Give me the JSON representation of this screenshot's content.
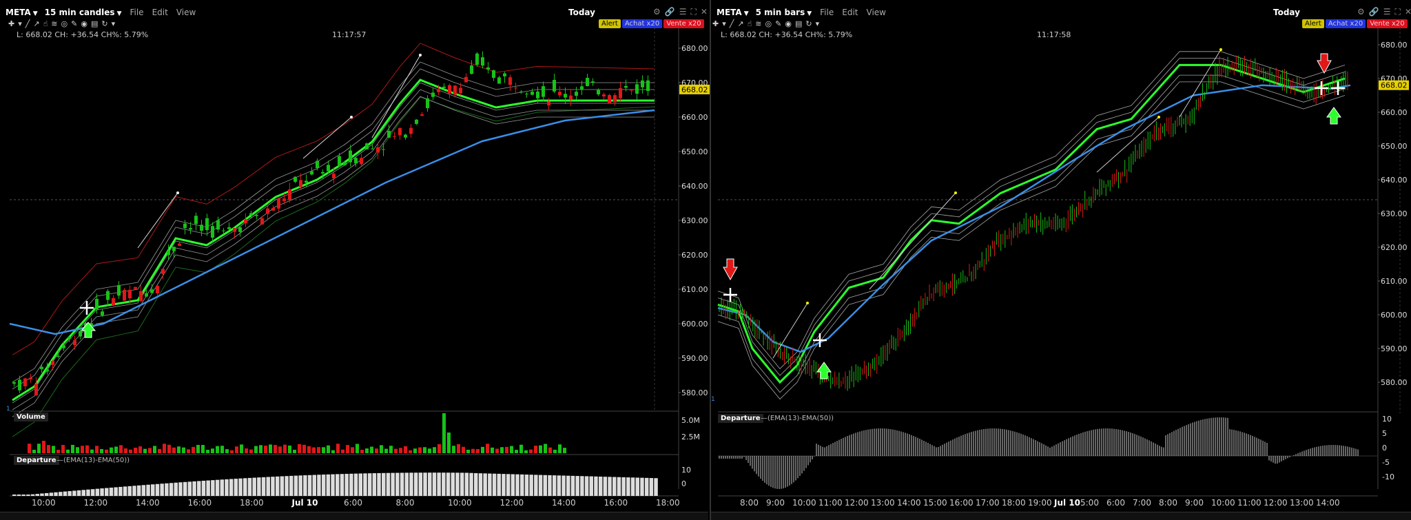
{
  "left": {
    "symbol": "META",
    "timeframe": "15 min candles",
    "menu": [
      "File",
      "Edit",
      "View"
    ],
    "today": "Today",
    "info": "L: 668.02 CH: +36.54 CH%: 5.79%",
    "clock": "11:17:57",
    "badges": {
      "alert": "Alert",
      "buy": "Achat x20",
      "sell": "Vente x20"
    },
    "price_axis": [
      "680.00",
      "670.00",
      "660.00",
      "650.00",
      "640.00",
      "630.00",
      "620.00",
      "610.00",
      "600.00",
      "590.00",
      "580.00"
    ],
    "last_price": "668.02",
    "volume_label": "Volume",
    "volume_axis": [
      "5.0M",
      "2.5M"
    ],
    "departure_label": "Departure",
    "departure_formula": "—(EMA(13)-EMA(50))",
    "departure_axis": [
      "10",
      "0"
    ],
    "time_axis": [
      "10:00",
      "12:00",
      "14:00",
      "16:00",
      "18:00",
      "Jul 10",
      "6:00",
      "8:00",
      "10:00",
      "12:00",
      "14:00",
      "16:00",
      "18:00"
    ],
    "close_x": "x"
  },
  "right": {
    "symbol": "META",
    "timeframe": "5 min bars",
    "menu": [
      "File",
      "Edit",
      "View"
    ],
    "today": "Today",
    "info": "L: 668.02 CH: +36.54 CH%: 5.79%",
    "clock": "11:17:58",
    "badges": {
      "alert": "Alert",
      "buy": "Achat x20",
      "sell": "Vente x20"
    },
    "price_axis": [
      "680.00",
      "670.00",
      "660.00",
      "650.00",
      "640.00",
      "630.00",
      "620.00",
      "610.00",
      "600.00",
      "590.00",
      "580.00"
    ],
    "last_price": "668.02",
    "departure_label": "Departure",
    "departure_formula": "—(EMA(13)-EMA(50))",
    "departure_axis": [
      "10",
      "5",
      "0",
      "-5",
      "-10"
    ],
    "time_axis": [
      "8:00",
      "9:00",
      "10:00",
      "11:00",
      "12:00",
      "13:00",
      "14:00",
      "15:00",
      "16:00",
      "17:00",
      "18:00",
      "19:00",
      "Jul 10",
      "5:00",
      "6:00",
      "7:00",
      "8:00",
      "9:00",
      "10:00",
      "11:00",
      "12:00",
      "13:00",
      "14:00"
    ],
    "close_x": "x"
  },
  "colors": {
    "up": "#17c217",
    "down": "#e01818",
    "ema_fast": "#2cff2c",
    "ema_slow": "#3a8fe8",
    "envelope_red": "#b01818",
    "badge_price": "#e8d000"
  }
}
